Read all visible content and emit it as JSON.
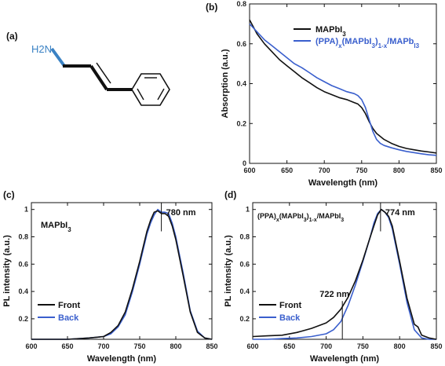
{
  "panels": {
    "a": {
      "label": "(a)",
      "amine": "H2N"
    },
    "b": {
      "label": "(b)"
    },
    "c": {
      "label": "(c)"
    },
    "d": {
      "label": "(d)"
    }
  },
  "colors": {
    "black_series": "#111111",
    "blue_series": "#3a5fcd",
    "molecule_blue": "#3b82c4"
  },
  "chart_data": [
    {
      "id": "b",
      "type": "line",
      "xlabel": "Wavelength (nm)",
      "ylabel": "Absorption (a.u.)",
      "xlim": [
        600,
        850
      ],
      "ylim": [
        0,
        0.8
      ],
      "xticks": [
        "600",
        "650",
        "700",
        "750",
        "800",
        "850"
      ],
      "yticks": [
        "0",
        "0.2",
        "0.4",
        "0.6",
        "0.8"
      ],
      "legend_position": "top-right",
      "legend": {
        "black": {
          "base": "MAPbI",
          "sub": "3"
        },
        "blue": {
          "p1": "(PPA)",
          "s1": "x",
          "p2": "(MAPbI",
          "s2": "3",
          "p3": ")",
          "s3": "1-x",
          "p4": "/MAPb",
          "s4": "I3"
        }
      },
      "series": [
        {
          "color": "black",
          "x": [
            600,
            610,
            620,
            630,
            640,
            650,
            660,
            670,
            680,
            690,
            700,
            710,
            720,
            730,
            740,
            745,
            750,
            755,
            760,
            765,
            770,
            780,
            790,
            800,
            810,
            820,
            830,
            840,
            850
          ],
          "values": [
            0.72,
            0.65,
            0.6,
            0.56,
            0.52,
            0.49,
            0.46,
            0.43,
            0.405,
            0.38,
            0.36,
            0.345,
            0.33,
            0.32,
            0.305,
            0.298,
            0.28,
            0.25,
            0.21,
            0.175,
            0.15,
            0.12,
            0.1,
            0.085,
            0.075,
            0.068,
            0.062,
            0.057,
            0.052
          ]
        },
        {
          "color": "blue",
          "x": [
            600,
            610,
            620,
            630,
            640,
            650,
            660,
            670,
            680,
            690,
            700,
            710,
            720,
            730,
            740,
            745,
            750,
            755,
            760,
            765,
            770,
            775,
            780,
            790,
            800,
            810,
            820,
            830,
            840,
            850
          ],
          "values": [
            0.7,
            0.66,
            0.62,
            0.59,
            0.56,
            0.53,
            0.5,
            0.48,
            0.455,
            0.43,
            0.41,
            0.39,
            0.375,
            0.36,
            0.35,
            0.34,
            0.32,
            0.28,
            0.22,
            0.16,
            0.12,
            0.1,
            0.09,
            0.078,
            0.068,
            0.06,
            0.054,
            0.048,
            0.043,
            0.04
          ]
        }
      ]
    },
    {
      "id": "c",
      "type": "line",
      "title": {
        "base": "MAPbI",
        "sub": "3"
      },
      "xlabel": "Wavelength (nm)",
      "ylabel": "PL intensity (a.u.)",
      "xlim": [
        600,
        850
      ],
      "ylim": [
        0.05,
        1.05
      ],
      "xticks": [
        "600",
        "650",
        "700",
        "750",
        "800",
        "850"
      ],
      "yticks": [
        "0.2",
        "0.4",
        "0.6",
        "0.8",
        "1"
      ],
      "annotation": {
        "text": "780 nm",
        "x": 780
      },
      "legend_position": "bottom-left",
      "legend": [
        "Front",
        "Back"
      ],
      "series": [
        {
          "name": "Front",
          "color": "black",
          "x": [
            600,
            650,
            680,
            700,
            710,
            720,
            730,
            740,
            750,
            760,
            765,
            770,
            775,
            780,
            785,
            790,
            795,
            800,
            810,
            820,
            830,
            840,
            850
          ],
          "values": [
            0.05,
            0.05,
            0.06,
            0.07,
            0.1,
            0.15,
            0.25,
            0.42,
            0.62,
            0.84,
            0.92,
            0.98,
            0.99,
            0.97,
            0.97,
            0.95,
            0.88,
            0.78,
            0.52,
            0.25,
            0.1,
            0.06,
            0.05
          ]
        },
        {
          "name": "Back",
          "color": "blue",
          "x": [
            600,
            650,
            680,
            700,
            710,
            720,
            730,
            740,
            750,
            760,
            765,
            770,
            775,
            780,
            785,
            790,
            795,
            800,
            810,
            820,
            830,
            840,
            850
          ],
          "values": [
            0.05,
            0.05,
            0.06,
            0.07,
            0.09,
            0.14,
            0.23,
            0.4,
            0.6,
            0.82,
            0.9,
            0.96,
            1.0,
            0.98,
            0.98,
            0.97,
            0.9,
            0.8,
            0.54,
            0.26,
            0.11,
            0.06,
            0.05
          ]
        }
      ]
    },
    {
      "id": "d",
      "type": "line",
      "title": {
        "p1": "(PPA)",
        "s1": "x",
        "p2": "(MAPbI",
        "s2": "3",
        "p3": ")",
        "s3": "1-x",
        "p4": "/MAPbI",
        "s4": "3"
      },
      "xlabel": "Wavelength (nm)",
      "ylabel": "PL intensity (a.u.)",
      "xlim": [
        600,
        850
      ],
      "ylim": [
        0.05,
        1.05
      ],
      "xticks": [
        "600",
        "650",
        "700",
        "750",
        "800",
        "850"
      ],
      "yticks": [
        "0.2",
        "0.4",
        "0.6",
        "0.8",
        "1"
      ],
      "annotations": [
        {
          "text": "774 nm",
          "x": 774
        },
        {
          "text": "722 nm",
          "x": 722
        }
      ],
      "legend_position": "bottom-left",
      "legend": [
        "Front",
        "Back"
      ],
      "series": [
        {
          "name": "Front",
          "color": "black",
          "x": [
            600,
            620,
            640,
            660,
            680,
            700,
            710,
            720,
            730,
            740,
            750,
            760,
            765,
            770,
            775,
            780,
            785,
            790,
            800,
            810,
            820,
            825,
            830,
            840,
            850
          ],
          "values": [
            0.07,
            0.075,
            0.08,
            0.1,
            0.13,
            0.17,
            0.21,
            0.27,
            0.36,
            0.48,
            0.63,
            0.8,
            0.88,
            0.96,
            1.0,
            0.98,
            0.95,
            0.88,
            0.62,
            0.35,
            0.16,
            0.14,
            0.08,
            0.06,
            0.05
          ]
        },
        {
          "name": "Back",
          "color": "blue",
          "x": [
            600,
            620,
            640,
            660,
            680,
            700,
            710,
            720,
            730,
            740,
            750,
            760,
            765,
            770,
            775,
            780,
            785,
            790,
            800,
            810,
            820,
            830,
            840,
            850
          ],
          "values": [
            0.05,
            0.05,
            0.055,
            0.06,
            0.07,
            0.09,
            0.12,
            0.18,
            0.3,
            0.45,
            0.62,
            0.8,
            0.9,
            0.97,
            1.0,
            0.98,
            0.94,
            0.86,
            0.6,
            0.32,
            0.12,
            0.06,
            0.05,
            0.05
          ]
        }
      ]
    }
  ]
}
